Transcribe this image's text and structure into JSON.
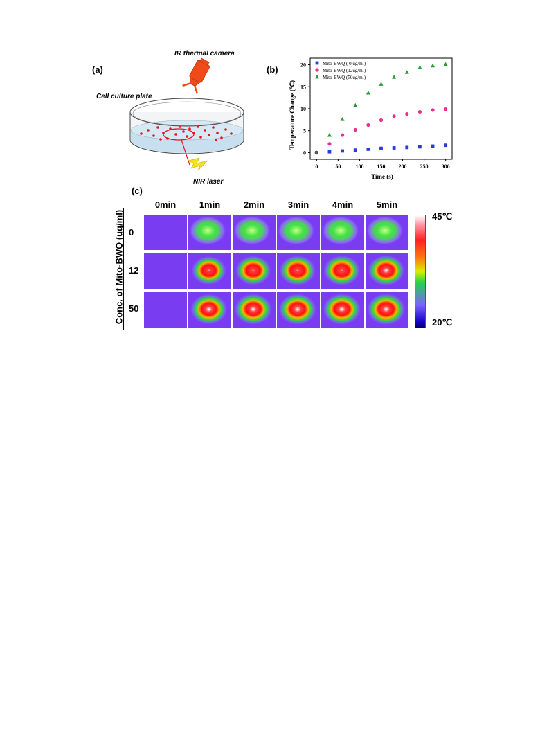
{
  "panel_a": {
    "label": "(a)",
    "camera_label": "IR thermal camera",
    "plate_label": "Cell culture plate",
    "laser_label": "NIR laser"
  },
  "panel_b": {
    "label": "(b)"
  },
  "panel_c": {
    "label": "(c)",
    "column_headers": [
      "0min",
      "1min",
      "2min",
      "3min",
      "4min",
      "5min"
    ],
    "row_headers": [
      "0",
      "12",
      "50"
    ],
    "row_axis_label": "Conc. of Mito-BWQ  (ug/ml)",
    "colorbar_max": "45℃",
    "colorbar_min": "20℃"
  },
  "chart_data": [
    {
      "type": "scatter",
      "xlabel": "Time (s)",
      "ylabel": "Temperature Change (℃)",
      "xlim": [
        -15,
        315
      ],
      "ylim": [
        -1.5,
        21.5
      ],
      "xticks": [
        0,
        50,
        100,
        150,
        200,
        250,
        300
      ],
      "yticks": [
        0,
        5,
        10,
        15,
        20
      ],
      "legend_position": "top-left",
      "series": [
        {
          "name": "Mito-BWQ ( 0 ug/ml)",
          "marker": "square",
          "color": "#2b3bd9",
          "x": [
            0,
            30,
            60,
            90,
            120,
            150,
            180,
            210,
            240,
            270,
            300
          ],
          "y": [
            0,
            0.2,
            0.4,
            0.6,
            0.8,
            1.0,
            1.1,
            1.2,
            1.35,
            1.5,
            1.7
          ]
        },
        {
          "name": "Mito-BWQ (12ug/ml)",
          "marker": "circle",
          "color": "#ee2d8c",
          "x": [
            0,
            30,
            60,
            90,
            120,
            150,
            180,
            210,
            240,
            270,
            300
          ],
          "y": [
            0,
            2.0,
            4.0,
            5.2,
            6.3,
            7.4,
            8.3,
            8.8,
            9.3,
            9.7,
            9.9
          ]
        },
        {
          "name": "Mito-BWQ (50ug/ml)",
          "marker": "triangle",
          "color": "#2e9a36",
          "x": [
            0,
            30,
            60,
            90,
            120,
            150,
            180,
            210,
            240,
            270,
            300
          ],
          "y": [
            0,
            4.0,
            7.6,
            10.8,
            13.6,
            15.6,
            17.2,
            18.3,
            19.4,
            19.8,
            20.1
          ]
        }
      ]
    },
    {
      "type": "heatmap",
      "columns": [
        "0min",
        "1min",
        "2min",
        "3min",
        "4min",
        "5min"
      ],
      "rows": [
        "0",
        "12",
        "50"
      ],
      "range_celsius": [
        20,
        45
      ],
      "hotspot_intensity": [
        [
          0,
          0.42,
          0.45,
          0.45,
          0.46,
          0.47
        ],
        [
          0,
          0.72,
          0.8,
          0.85,
          0.88,
          0.9
        ],
        [
          0,
          0.9,
          0.95,
          0.97,
          0.98,
          1.0
        ]
      ]
    }
  ],
  "colors": {
    "camera": "#f14a1a",
    "dish_medium": "#c7dfee",
    "dots": "#e8141c",
    "lightning": "#f5e31b",
    "background_purple": "#7a3cf0"
  }
}
